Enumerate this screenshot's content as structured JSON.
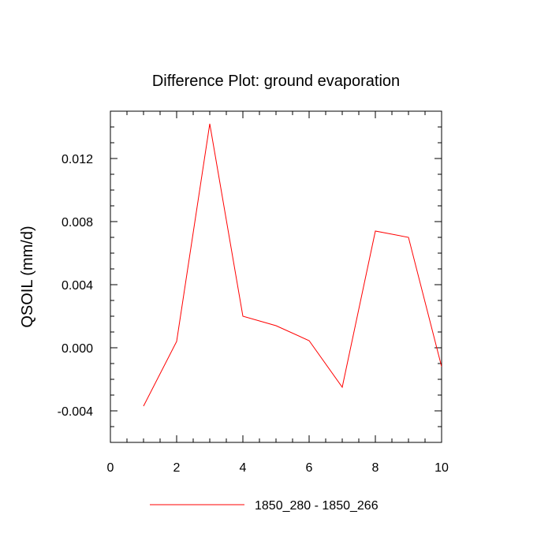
{
  "chart_data": {
    "type": "line",
    "title": "Difference Plot: ground evaporation",
    "xlabel": "",
    "ylabel": "QSOIL  (mm/d)",
    "xlim": [
      0,
      10
    ],
    "ylim": [
      -0.006,
      0.015
    ],
    "xticks": [
      0,
      2,
      4,
      6,
      8,
      10
    ],
    "xtick_labels": [
      "0",
      "2",
      "4",
      "6",
      "8",
      "10"
    ],
    "yticks": [
      -0.004,
      0.0,
      0.004,
      0.008,
      0.012
    ],
    "ytick_labels": [
      "-0.004",
      "0.000",
      "0.004",
      "0.008",
      "0.012"
    ],
    "grid": false,
    "legend_position": "bottom-center",
    "series": [
      {
        "name": "1850_280 - 1850_266",
        "color": "#ff0000",
        "x": [
          1,
          2,
          3,
          4,
          5,
          6,
          7,
          8,
          9,
          10
        ],
        "y": [
          -0.0037,
          0.0004,
          0.0142,
          0.002,
          0.0014,
          0.00045,
          -0.0025,
          0.0074,
          0.007,
          -0.0012
        ]
      }
    ]
  }
}
